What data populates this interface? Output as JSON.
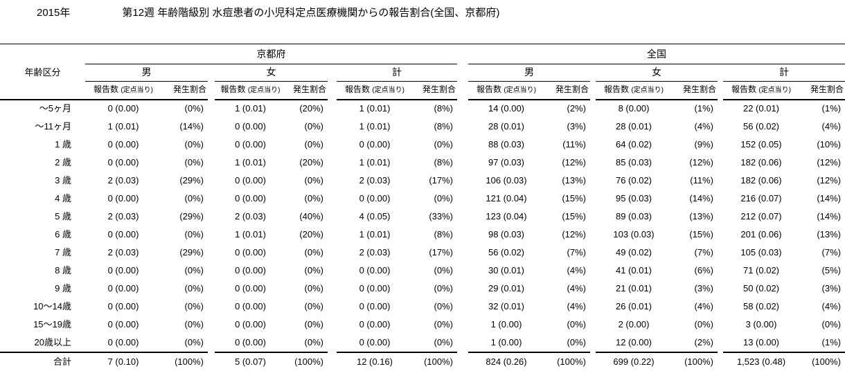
{
  "title": {
    "year": "2015年",
    "main": "第12週 年齢階級別 水痘患者の小児科定点医療機関からの報告割合(全国、京都府)"
  },
  "colors": {
    "text": "#000000",
    "background": "#ffffff",
    "rule": "#000000"
  },
  "table": {
    "age_header": "年齢区分",
    "sections": [
      {
        "label": "京都府",
        "groups": [
          "男",
          "女",
          "計"
        ]
      },
      {
        "label": "全国",
        "groups": [
          "男",
          "女",
          "計"
        ]
      }
    ],
    "count_header": "報告数",
    "count_header_unit": "(定点当り)",
    "pct_header": "発生割合",
    "rows": [
      {
        "label": "～5ヶ月",
        "values": [
          "0 (0.00)",
          "(0%)",
          "1 (0.01)",
          "(20%)",
          "1 (0.01)",
          "(8%)",
          "14 (0.00)",
          "(2%)",
          "8 (0.00)",
          "(1%)",
          "22 (0.01)",
          "(1%)"
        ]
      },
      {
        "label": "～11ヶ月",
        "values": [
          "1 (0.01)",
          "(14%)",
          "0 (0.00)",
          "(0%)",
          "1 (0.01)",
          "(8%)",
          "28 (0.01)",
          "(3%)",
          "28 (0.01)",
          "(4%)",
          "56 (0.02)",
          "(4%)"
        ]
      },
      {
        "label": "1 歳",
        "values": [
          "0 (0.00)",
          "(0%)",
          "0 (0.00)",
          "(0%)",
          "0 (0.00)",
          "(0%)",
          "88 (0.03)",
          "(11%)",
          "64 (0.02)",
          "(9%)",
          "152 (0.05)",
          "(10%)"
        ]
      },
      {
        "label": "2 歳",
        "values": [
          "0 (0.00)",
          "(0%)",
          "1 (0.01)",
          "(20%)",
          "1 (0.01)",
          "(8%)",
          "97 (0.03)",
          "(12%)",
          "85 (0.03)",
          "(12%)",
          "182 (0.06)",
          "(12%)"
        ]
      },
      {
        "label": "3 歳",
        "values": [
          "2 (0.03)",
          "(29%)",
          "0 (0.00)",
          "(0%)",
          "2 (0.03)",
          "(17%)",
          "106 (0.03)",
          "(13%)",
          "76 (0.02)",
          "(11%)",
          "182 (0.06)",
          "(12%)"
        ]
      },
      {
        "label": "4 歳",
        "values": [
          "0 (0.00)",
          "(0%)",
          "0 (0.00)",
          "(0%)",
          "0 (0.00)",
          "(0%)",
          "121 (0.04)",
          "(15%)",
          "95 (0.03)",
          "(14%)",
          "216 (0.07)",
          "(14%)"
        ]
      },
      {
        "label": "5 歳",
        "values": [
          "2 (0.03)",
          "(29%)",
          "2 (0.03)",
          "(40%)",
          "4 (0.05)",
          "(33%)",
          "123 (0.04)",
          "(15%)",
          "89 (0.03)",
          "(13%)",
          "212 (0.07)",
          "(14%)"
        ]
      },
      {
        "label": "6 歳",
        "values": [
          "0 (0.00)",
          "(0%)",
          "1 (0.01)",
          "(20%)",
          "1 (0.01)",
          "(8%)",
          "98 (0.03)",
          "(12%)",
          "103 (0.03)",
          "(15%)",
          "201 (0.06)",
          "(13%)"
        ]
      },
      {
        "label": "7 歳",
        "values": [
          "2 (0.03)",
          "(29%)",
          "0 (0.00)",
          "(0%)",
          "2 (0.03)",
          "(17%)",
          "56 (0.02)",
          "(7%)",
          "49 (0.02)",
          "(7%)",
          "105 (0.03)",
          "(7%)"
        ]
      },
      {
        "label": "8 歳",
        "values": [
          "0 (0.00)",
          "(0%)",
          "0 (0.00)",
          "(0%)",
          "0 (0.00)",
          "(0%)",
          "30 (0.01)",
          "(4%)",
          "41 (0.01)",
          "(6%)",
          "71 (0.02)",
          "(5%)"
        ]
      },
      {
        "label": "9 歳",
        "values": [
          "0 (0.00)",
          "(0%)",
          "0 (0.00)",
          "(0%)",
          "0 (0.00)",
          "(0%)",
          "29 (0.01)",
          "(4%)",
          "21 (0.01)",
          "(3%)",
          "50 (0.02)",
          "(3%)"
        ]
      },
      {
        "label": "10～14歳",
        "values": [
          "0 (0.00)",
          "(0%)",
          "0 (0.00)",
          "(0%)",
          "0 (0.00)",
          "(0%)",
          "32 (0.01)",
          "(4%)",
          "26 (0.01)",
          "(4%)",
          "58 (0.02)",
          "(4%)"
        ]
      },
      {
        "label": "15～19歳",
        "values": [
          "0 (0.00)",
          "(0%)",
          "0 (0.00)",
          "(0%)",
          "0 (0.00)",
          "(0%)",
          "1 (0.00)",
          "(0%)",
          "2 (0.00)",
          "(0%)",
          "3 (0.00)",
          "(0%)"
        ]
      },
      {
        "label": "20歳以上",
        "values": [
          "0 (0.00)",
          "(0%)",
          "0 (0.00)",
          "(0%)",
          "0 (0.00)",
          "(0%)",
          "1 (0.00)",
          "(0%)",
          "12 (0.00)",
          "(2%)",
          "13 (0.00)",
          "(1%)"
        ]
      }
    ],
    "total_row": {
      "label": "合計",
      "values": [
        "7 (0.10)",
        "(100%)",
        "5 (0.07)",
        "(100%)",
        "12 (0.16)",
        "(100%)",
        "824 (0.26)",
        "(100%)",
        "699 (0.22)",
        "(100%)",
        "1,523 (0.48)",
        "(100%)"
      ]
    }
  }
}
